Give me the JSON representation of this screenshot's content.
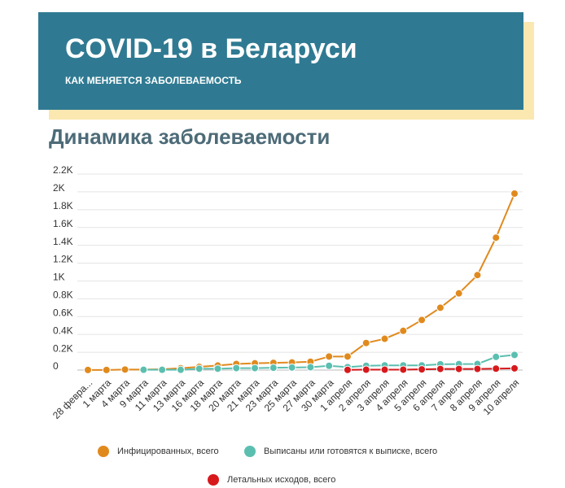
{
  "header": {
    "title": "COVID-19 в Беларуси",
    "subtitle": "КАК МЕНЯЕТСЯ ЗАБОЛЕВАЕМОСТЬ"
  },
  "section_title": "Динамика заболеваемости",
  "chart_data": {
    "type": "line",
    "categories": [
      "28 февра...",
      "1 марта",
      "4 марта",
      "9 марта",
      "11 марта",
      "13 марта",
      "16 марта",
      "18 марта",
      "20 марта",
      "21 марта",
      "23 марта",
      "25 марта",
      "27 марта",
      "30 марта",
      "1 апреля",
      "2 апреля",
      "3 апреля",
      "4 апреля",
      "5 апреля",
      "6 апреля",
      "7 апреля",
      "8 апреля",
      "9 апреля",
      "10 апреля"
    ],
    "series": [
      {
        "name": "Инфицированных, всего",
        "color": "#e08a1e",
        "values": [
          1,
          1,
          6,
          6,
          9,
          21,
          36,
          51,
          69,
          76,
          81,
          86,
          94,
          152,
          152,
          304,
          351,
          440,
          562,
          700,
          861,
          1066,
          1486,
          1981
        ]
      },
      {
        "name": "Выписаны или готовятся к выписке, всего",
        "color": "#5bbfb0",
        "values": [
          null,
          null,
          null,
          3,
          3,
          3,
          15,
          15,
          22,
          22,
          26,
          29,
          32,
          48,
          33,
          48,
          53,
          53,
          53,
          65,
          67,
          69,
          148,
          170
        ]
      },
      {
        "name": "Летальных исходов, всего",
        "color": "#d7191c",
        "values": [
          null,
          null,
          null,
          null,
          null,
          null,
          null,
          null,
          null,
          null,
          null,
          null,
          null,
          null,
          2,
          4,
          4,
          5,
          8,
          13,
          13,
          13,
          16,
          19
        ]
      }
    ],
    "ylim": [
      0,
      2200
    ],
    "yticks": [
      0,
      {
        "value": 200,
        "label": "0.2K"
      },
      {
        "value": 400,
        "label": "0.4K"
      },
      {
        "value": 600,
        "label": "0.6K"
      },
      {
        "value": 800,
        "label": "0.8K"
      },
      {
        "value": 1000,
        "label": "1K"
      },
      {
        "value": 1200,
        "label": "1.2K"
      },
      {
        "value": 1400,
        "label": "1.4K"
      },
      {
        "value": 1600,
        "label": "1.6K"
      },
      {
        "value": 1800,
        "label": "1.8K"
      },
      {
        "value": 2000,
        "label": "2K"
      },
      {
        "value": 2200,
        "label": "2.2K"
      }
    ],
    "grid": true
  }
}
